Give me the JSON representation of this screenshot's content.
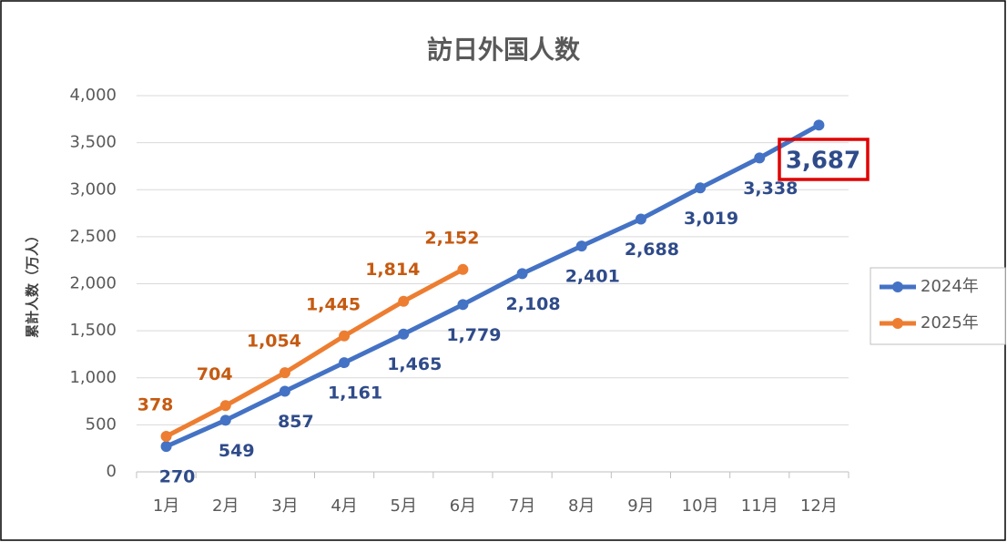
{
  "chart_data": {
    "type": "line",
    "title": "訪日外国人数",
    "y_label": "累計人数（万人）",
    "categories": [
      "1月",
      "2月",
      "3月",
      "4月",
      "5月",
      "6月",
      "7月",
      "8月",
      "9月",
      "10月",
      "11月",
      "12月"
    ],
    "series": [
      {
        "name": "2024年",
        "color": "#4472c4",
        "label_color": "#2f4b8a",
        "values": [
          270,
          549,
          857,
          1161,
          1465,
          1779,
          2108,
          2401,
          2688,
          3019,
          3338,
          3687
        ],
        "value_labels": [
          "270",
          "549",
          "857",
          "1,161",
          "1,465",
          "1,779",
          "2,108",
          "2,401",
          "2,688",
          "3,019",
          "3,338",
          "3,687"
        ]
      },
      {
        "name": "2025年",
        "color": "#ed7d31",
        "label_color": "#c55a11",
        "values": [
          378,
          704,
          1054,
          1445,
          1814,
          2152,
          null,
          null,
          null,
          null,
          null,
          null
        ],
        "value_labels": [
          "378",
          "704",
          "1,054",
          "1,445",
          "1,814",
          "2,152",
          null,
          null,
          null,
          null,
          null,
          null
        ]
      }
    ],
    "ylim": [
      0,
      4000
    ],
    "yticks": [
      0,
      500,
      {
        "value": 1000,
        "label": "1,000"
      },
      {
        "value": 1500,
        "label": "1,500"
      },
      {
        "value": 2000,
        "label": "2,000"
      },
      {
        "value": 2500,
        "label": "2,500"
      },
      {
        "value": 3000,
        "label": "3,000"
      },
      {
        "value": 3500,
        "label": "3,500"
      },
      {
        "value": 4000,
        "label": "4,000"
      }
    ],
    "grid": true,
    "legend": "right"
  }
}
